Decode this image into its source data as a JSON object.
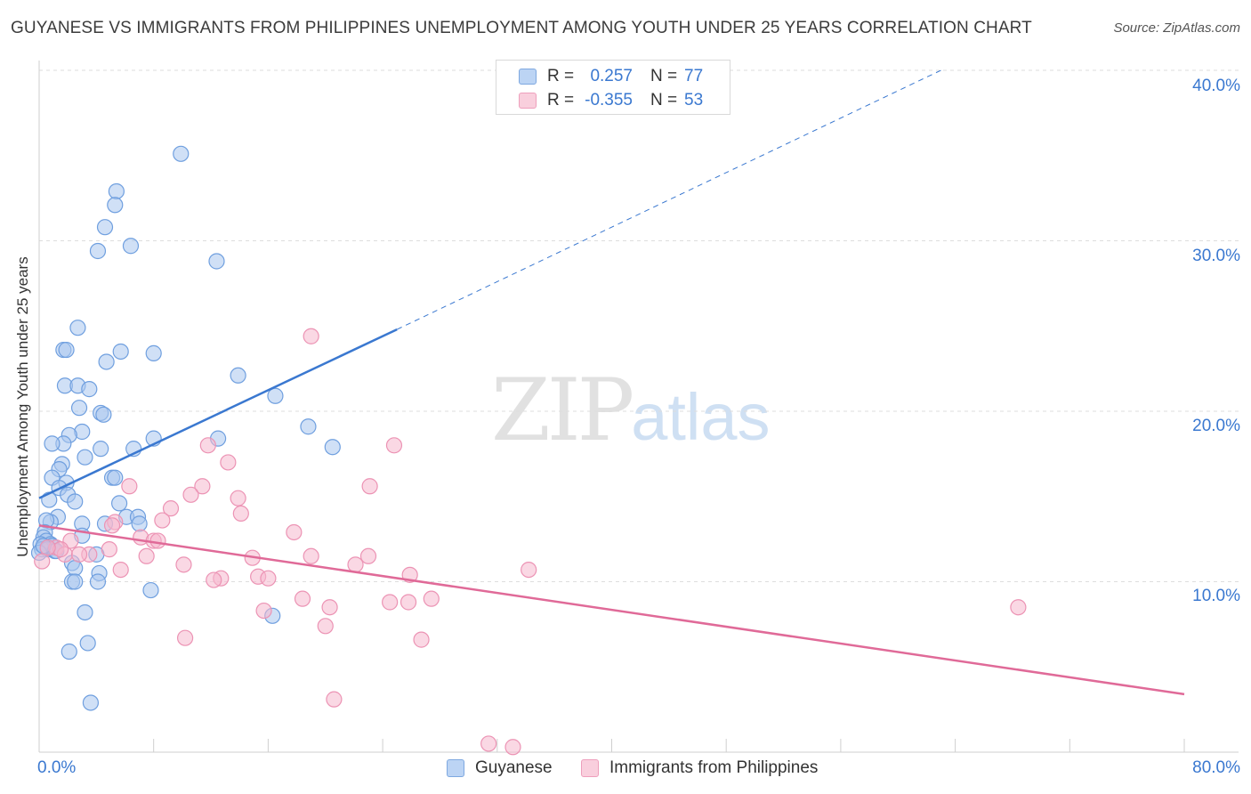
{
  "title": "GUYANESE VS IMMIGRANTS FROM PHILIPPINES UNEMPLOYMENT AMONG YOUTH UNDER 25 YEARS CORRELATION CHART",
  "source": "Source: ZipAtlas.com",
  "watermark": {
    "zip": "ZIP",
    "atlas": "atlas"
  },
  "colors": {
    "blue": "#3a78d0",
    "blue_fill": "#a9c7ef",
    "pink": "#e06a98",
    "pink_fill": "#f5b8cd",
    "grid": "#dddddd"
  },
  "legend": {
    "rows": [
      {
        "r_label": "R =",
        "r_value": "0.257",
        "n_label": "N =",
        "n_value": "77"
      },
      {
        "r_label": "R =",
        "r_value": "-0.355",
        "n_label": "N =",
        "n_value": "53"
      }
    ]
  },
  "chart_data": {
    "type": "scatter",
    "title": "GUYANESE VS IMMIGRANTS FROM PHILIPPINES UNEMPLOYMENT AMONG YOUTH UNDER 25 YEARS CORRELATION CHART",
    "xlabel": "",
    "ylabel": "Unemployment Among Youth under 25 years",
    "xlim": [
      0,
      80
    ],
    "ylim": [
      0,
      40
    ],
    "x_tick_labels": [
      "0.0%",
      "80.0%"
    ],
    "y_tick_labels": [
      "10.0%",
      "20.0%",
      "30.0%",
      "40.0%"
    ],
    "y_ticks": [
      10,
      20,
      30,
      40
    ],
    "legend_placement": "top-center",
    "series": [
      {
        "name": "Guyanese",
        "r": 0.257,
        "n": 77,
        "trend": {
          "x0": 0,
          "y0": 14.9,
          "x1": 25,
          "y1": 24.8,
          "dashed_to_x": 63,
          "dashed_to_y": 40.0
        },
        "points": [
          [
            9.9,
            35.1
          ],
          [
            5.4,
            32.9
          ],
          [
            5.3,
            32.1
          ],
          [
            4.6,
            30.8
          ],
          [
            6.4,
            29.7
          ],
          [
            4.1,
            29.4
          ],
          [
            12.4,
            28.8
          ],
          [
            2.7,
            24.9
          ],
          [
            1.7,
            23.6
          ],
          [
            1.9,
            23.6
          ],
          [
            5.7,
            23.5
          ],
          [
            8.0,
            23.4
          ],
          [
            4.7,
            22.9
          ],
          [
            13.9,
            22.1
          ],
          [
            1.8,
            21.5
          ],
          [
            2.7,
            21.5
          ],
          [
            3.5,
            21.3
          ],
          [
            16.5,
            20.9
          ],
          [
            2.8,
            20.2
          ],
          [
            4.3,
            19.9
          ],
          [
            4.5,
            19.8
          ],
          [
            18.8,
            19.1
          ],
          [
            3.0,
            18.8
          ],
          [
            2.1,
            18.6
          ],
          [
            8.0,
            18.4
          ],
          [
            12.5,
            18.4
          ],
          [
            1.7,
            18.1
          ],
          [
            0.9,
            18.1
          ],
          [
            4.3,
            17.8
          ],
          [
            6.6,
            17.8
          ],
          [
            20.5,
            17.9
          ],
          [
            3.2,
            17.3
          ],
          [
            1.6,
            16.9
          ],
          [
            1.4,
            16.6
          ],
          [
            0.9,
            16.1
          ],
          [
            5.1,
            16.1
          ],
          [
            5.3,
            16.1
          ],
          [
            1.9,
            15.8
          ],
          [
            1.4,
            15.5
          ],
          [
            2.0,
            15.1
          ],
          [
            0.7,
            14.8
          ],
          [
            2.5,
            14.7
          ],
          [
            5.6,
            14.6
          ],
          [
            1.3,
            13.8
          ],
          [
            6.1,
            13.8
          ],
          [
            6.9,
            13.8
          ],
          [
            0.8,
            13.5
          ],
          [
            0.5,
            13.6
          ],
          [
            4.6,
            13.4
          ],
          [
            7.0,
            13.4
          ],
          [
            3.0,
            13.4
          ],
          [
            0.4,
            12.9
          ],
          [
            0.3,
            12.6
          ],
          [
            3.0,
            12.7
          ],
          [
            0.5,
            12.4
          ],
          [
            0.8,
            12.2
          ],
          [
            0.9,
            12.1
          ],
          [
            0.1,
            12.2
          ],
          [
            0.2,
            11.9
          ],
          [
            0.6,
            11.9
          ],
          [
            1.1,
            11.8
          ],
          [
            1.2,
            11.8
          ],
          [
            0.0,
            11.7
          ],
          [
            0.3,
            12.1
          ],
          [
            2.3,
            11.1
          ],
          [
            2.5,
            10.8
          ],
          [
            4.2,
            10.5
          ],
          [
            4.0,
            11.6
          ],
          [
            2.3,
            10.0
          ],
          [
            2.5,
            10.0
          ],
          [
            4.1,
            10.0
          ],
          [
            7.8,
            9.5
          ],
          [
            16.3,
            8.0
          ],
          [
            3.2,
            8.2
          ],
          [
            3.4,
            6.4
          ],
          [
            2.1,
            5.9
          ],
          [
            3.6,
            2.9
          ]
        ]
      },
      {
        "name": "Immigrants from Philippines",
        "r": -0.355,
        "n": 53,
        "trend": {
          "x0": 0,
          "y0": 13.3,
          "x1": 80,
          "y1": 3.4
        },
        "points": [
          [
            0.2,
            11.2
          ],
          [
            19.0,
            24.4
          ],
          [
            24.8,
            18.0
          ],
          [
            11.8,
            18.0
          ],
          [
            13.2,
            17.0
          ],
          [
            6.3,
            15.6
          ],
          [
            11.4,
            15.6
          ],
          [
            23.1,
            15.6
          ],
          [
            10.6,
            15.1
          ],
          [
            13.9,
            14.9
          ],
          [
            9.2,
            14.3
          ],
          [
            14.1,
            14.0
          ],
          [
            8.6,
            13.6
          ],
          [
            5.3,
            13.5
          ],
          [
            5.1,
            13.3
          ],
          [
            17.8,
            12.9
          ],
          [
            7.1,
            12.6
          ],
          [
            8.0,
            12.4
          ],
          [
            8.3,
            12.4
          ],
          [
            2.2,
            12.4
          ],
          [
            1.2,
            12.0
          ],
          [
            4.9,
            11.9
          ],
          [
            3.5,
            11.6
          ],
          [
            1.8,
            11.6
          ],
          [
            7.5,
            11.5
          ],
          [
            14.9,
            11.4
          ],
          [
            19.0,
            11.5
          ],
          [
            23.0,
            11.5
          ],
          [
            22.1,
            11.0
          ],
          [
            10.1,
            11.0
          ],
          [
            5.7,
            10.7
          ],
          [
            12.7,
            10.2
          ],
          [
            15.3,
            10.3
          ],
          [
            16.0,
            10.2
          ],
          [
            12.2,
            10.1
          ],
          [
            25.9,
            10.4
          ],
          [
            34.2,
            10.7
          ],
          [
            27.4,
            9.0
          ],
          [
            18.4,
            9.0
          ],
          [
            24.5,
            8.8
          ],
          [
            25.8,
            8.8
          ],
          [
            20.3,
            8.5
          ],
          [
            15.7,
            8.3
          ],
          [
            20.0,
            7.4
          ],
          [
            68.4,
            8.5
          ],
          [
            10.2,
            6.7
          ],
          [
            26.7,
            6.6
          ],
          [
            20.6,
            3.1
          ],
          [
            31.4,
            0.5
          ],
          [
            33.1,
            0.3
          ],
          [
            1.5,
            11.9
          ],
          [
            2.8,
            11.6
          ],
          [
            0.6,
            12.0
          ]
        ]
      }
    ]
  },
  "bottom_legend": {
    "series1": "Guyanese",
    "series2": "Immigrants from Philippines"
  }
}
